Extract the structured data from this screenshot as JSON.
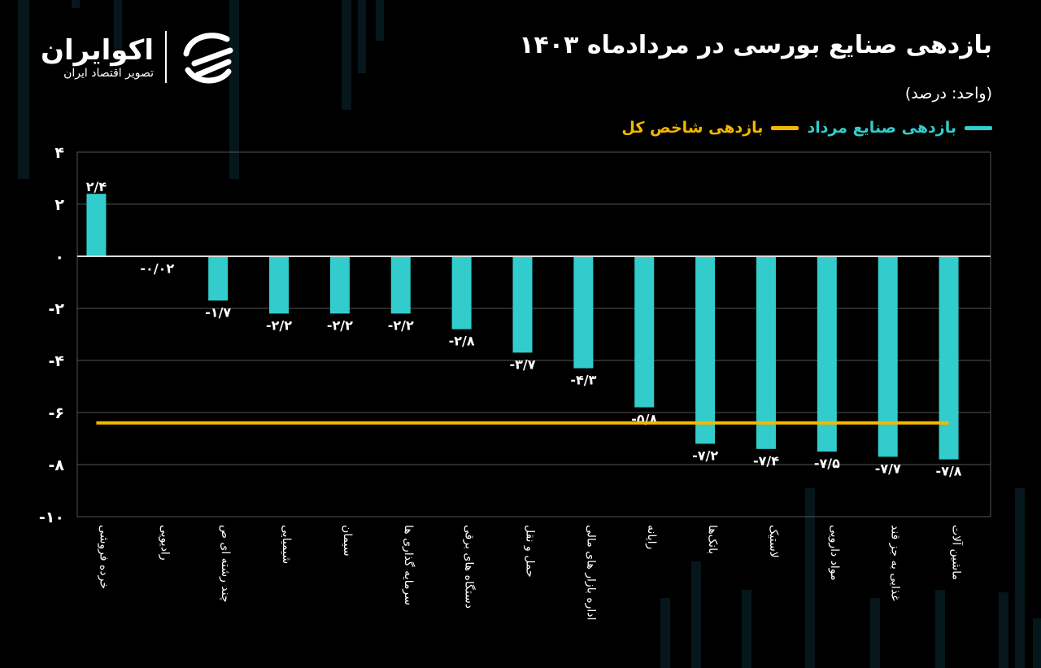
{
  "brand": {
    "name": "اکوایران",
    "tagline": "تصویر اقتصاد ایران"
  },
  "colors": {
    "bar": "#33cccc",
    "index_line": "#f5b800",
    "background": "#000000",
    "grid": "#555555"
  },
  "chart_data": {
    "type": "bar",
    "title": "بازدهی صنایع بورسی در مردادماه ۱۴۰۳",
    "subtitle": "(واحد: درصد)",
    "legend": [
      {
        "name": "بازدهی صنایع مرداد",
        "color": "#33cccc"
      },
      {
        "name": "بازدهی شاخص کل",
        "color": "#f5b800"
      }
    ],
    "legend_placement": "top-right",
    "categories": [
      "خرده فروشی",
      "رادیویی",
      "چند رشته ای ص",
      "شیمیایی",
      "سیمان",
      "سرمایه گذاری ها",
      "دستگاه های برقی",
      "حمل و نقل",
      "اداره بازار های مالی",
      "رایانه",
      "بانک‌ها",
      "لاستیک",
      "مواد دارویی",
      "غذایی به جز قند",
      "ماشین آلات"
    ],
    "series": [
      {
        "name": "بازدهی صنایع مرداد",
        "values": [
          2.4,
          -0.02,
          -1.7,
          -2.2,
          -2.2,
          -2.2,
          -2.8,
          -3.7,
          -4.3,
          -5.8,
          -7.2,
          -7.4,
          -7.5,
          -7.7,
          -7.8
        ]
      }
    ],
    "data_labels": [
      "۲/۴",
      "-۰/۰۲",
      "-۱/۷",
      "-۲/۲",
      "-۲/۲",
      "-۲/۲",
      "-۲/۸",
      "-۳/۷",
      "-۴/۳",
      "-۵/۸",
      "-۷/۲",
      "-۷/۴",
      "-۷/۵",
      "-۷/۷",
      "-۷/۸"
    ],
    "index_return": -6.4,
    "ylim": [
      -10,
      4
    ],
    "yticks": [
      4,
      2,
      0,
      -2,
      -4,
      -6,
      -8,
      -10
    ],
    "ytick_labels": [
      "۴",
      "۲",
      "۰",
      "-۲",
      "-۴",
      "-۶",
      "-۸",
      "-۱۰"
    ],
    "grid": true
  }
}
